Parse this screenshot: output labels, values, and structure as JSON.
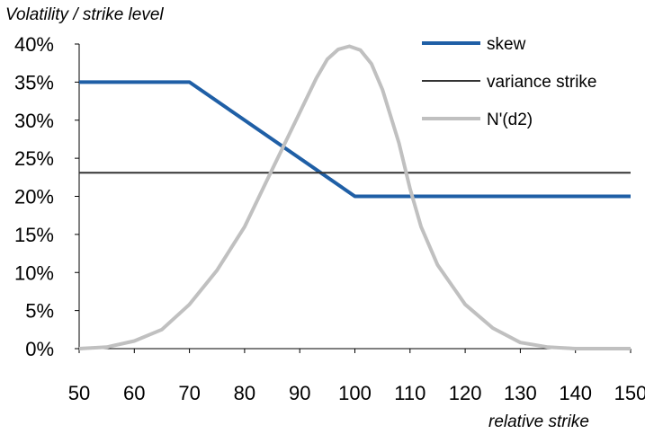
{
  "chart_data": {
    "type": "line",
    "ylabel": "Volatility / strike level",
    "xlabel": "relative strike",
    "xlim": [
      50,
      150
    ],
    "ylim": [
      0,
      40
    ],
    "x_ticks": [
      "50",
      "60",
      "70",
      "80",
      "90",
      "100",
      "110",
      "120",
      "130",
      "140",
      "150"
    ],
    "y_ticks": [
      "0%",
      "5%",
      "10%",
      "15%",
      "20%",
      "25%",
      "30%",
      "35%",
      "40%"
    ],
    "grid": false,
    "legend_position": "top-right",
    "series": [
      {
        "name": "skew",
        "color": "#1f5fa6",
        "x": [
          50,
          70,
          100,
          150
        ],
        "y": [
          35,
          35,
          20,
          20
        ]
      },
      {
        "name": "variance strike",
        "color": "#333333",
        "x": [
          50,
          150
        ],
        "y": [
          23.1,
          23.1
        ]
      },
      {
        "name": "N'(d2)",
        "color": "#c0c0c0",
        "x": [
          50,
          55,
          60,
          65,
          70,
          75,
          80,
          85,
          90,
          93,
          95,
          97,
          99,
          101,
          103,
          105,
          108,
          110,
          112,
          115,
          120,
          125,
          130,
          135,
          140,
          150
        ],
        "y": [
          0,
          0.2,
          1,
          2.5,
          5.8,
          10.3,
          16,
          23.5,
          31,
          35.5,
          38,
          39.3,
          39.7,
          39.2,
          37.4,
          34,
          27,
          21,
          16,
          11,
          5.8,
          2.7,
          0.8,
          0.2,
          0,
          0
        ]
      }
    ]
  }
}
